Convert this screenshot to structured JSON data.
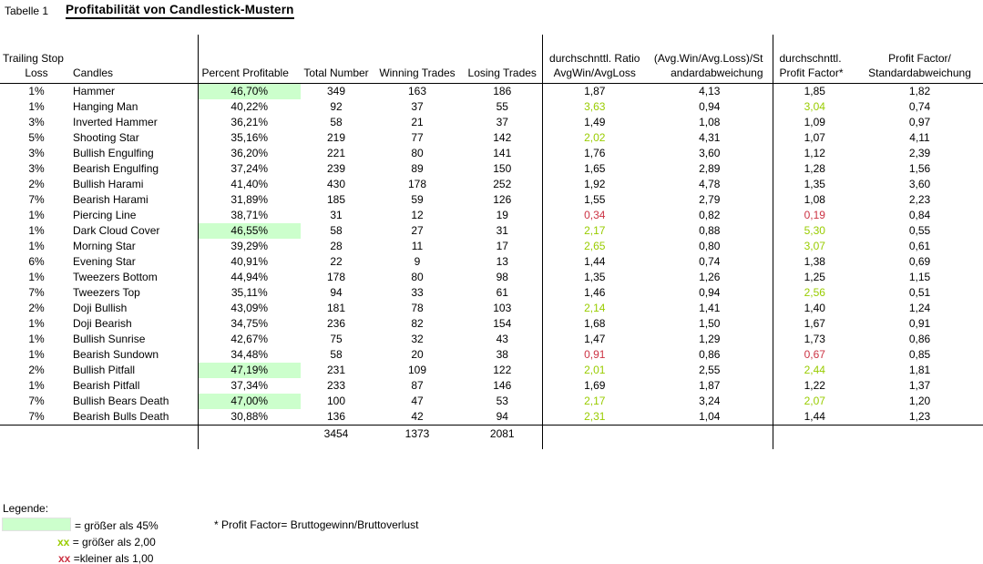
{
  "title": {
    "label": "Tabelle 1",
    "heading": "Profitabilität von Candlestick-Mustern"
  },
  "colors": {
    "highlight": "#ccffcc",
    "good": "#99cc00",
    "bad": "#cc3344"
  },
  "table": {
    "headers": {
      "trailing_stop_line1": "Trailing Stop",
      "trailing_stop_line2": "Loss",
      "candles": "Candles",
      "percent": "Percent Profitable",
      "total": "Total Number",
      "winning": "Winning Trades",
      "losing": "Losing Trades",
      "ratio_line1": "durchschnttl. Ratio",
      "ratio_line2": "AvgWin/AvgLoss",
      "ratio_std_line1": "(Avg.Win/Avg.Loss)/St",
      "ratio_std_line2": "andardabweichung",
      "pf_line1": "durchschnttl.",
      "pf_line2": "Profit Factor*",
      "pf_std_line1": "Profit Factor/",
      "pf_std_line2": "Standardabweichung"
    },
    "rows": [
      {
        "stop": "1%",
        "candle": "Hammer",
        "percent": "46,70%",
        "hl": true,
        "total": "349",
        "winning": "163",
        "losing": "186",
        "ratio": "1,87",
        "rc": "",
        "ratio_std": "4,13",
        "pf": "1,85",
        "pc": "",
        "pf_std": "1,82"
      },
      {
        "stop": "1%",
        "candle": "Hanging Man",
        "percent": "40,22%",
        "hl": false,
        "total": "92",
        "winning": "37",
        "losing": "55",
        "ratio": "3,63",
        "rc": "good",
        "ratio_std": "0,94",
        "pf": "3,04",
        "pc": "good",
        "pf_std": "0,74"
      },
      {
        "stop": "3%",
        "candle": "Inverted Hammer",
        "percent": "36,21%",
        "hl": false,
        "total": "58",
        "winning": "21",
        "losing": "37",
        "ratio": "1,49",
        "rc": "",
        "ratio_std": "1,08",
        "pf": "1,09",
        "pc": "",
        "pf_std": "0,97"
      },
      {
        "stop": "5%",
        "candle": "Shooting Star",
        "percent": "35,16%",
        "hl": false,
        "total": "219",
        "winning": "77",
        "losing": "142",
        "ratio": "2,02",
        "rc": "good",
        "ratio_std": "4,31",
        "pf": "1,07",
        "pc": "",
        "pf_std": "4,11"
      },
      {
        "stop": "3%",
        "candle": "Bullish Engulfing",
        "percent": "36,20%",
        "hl": false,
        "total": "221",
        "winning": "80",
        "losing": "141",
        "ratio": "1,76",
        "rc": "",
        "ratio_std": "3,60",
        "pf": "1,12",
        "pc": "",
        "pf_std": "2,39"
      },
      {
        "stop": "3%",
        "candle": "Bearish Engulfing",
        "percent": "37,24%",
        "hl": false,
        "total": "239",
        "winning": "89",
        "losing": "150",
        "ratio": "1,65",
        "rc": "",
        "ratio_std": "2,89",
        "pf": "1,28",
        "pc": "",
        "pf_std": "1,56"
      },
      {
        "stop": "2%",
        "candle": "Bullish Harami",
        "percent": "41,40%",
        "hl": false,
        "total": "430",
        "winning": "178",
        "losing": "252",
        "ratio": "1,92",
        "rc": "",
        "ratio_std": "4,78",
        "pf": "1,35",
        "pc": "",
        "pf_std": "3,60"
      },
      {
        "stop": "7%",
        "candle": "Bearish Harami",
        "percent": "31,89%",
        "hl": false,
        "total": "185",
        "winning": "59",
        "losing": "126",
        "ratio": "1,55",
        "rc": "",
        "ratio_std": "2,79",
        "pf": "1,08",
        "pc": "",
        "pf_std": "2,23"
      },
      {
        "stop": "1%",
        "candle": "Piercing Line",
        "percent": "38,71%",
        "hl": false,
        "total": "31",
        "winning": "12",
        "losing": "19",
        "ratio": "0,34",
        "rc": "bad",
        "ratio_std": "0,82",
        "pf": "0,19",
        "pc": "bad",
        "pf_std": "0,84"
      },
      {
        "stop": "1%",
        "candle": "Dark Cloud Cover",
        "percent": "46,55%",
        "hl": true,
        "total": "58",
        "winning": "27",
        "losing": "31",
        "ratio": "2,17",
        "rc": "good",
        "ratio_std": "0,88",
        "pf": "5,30",
        "pc": "good",
        "pf_std": "0,55"
      },
      {
        "stop": "1%",
        "candle": "Morning Star",
        "percent": "39,29%",
        "hl": false,
        "total": "28",
        "winning": "11",
        "losing": "17",
        "ratio": "2,65",
        "rc": "good",
        "ratio_std": "0,80",
        "pf": "3,07",
        "pc": "good",
        "pf_std": "0,61"
      },
      {
        "stop": "6%",
        "candle": "Evening Star",
        "percent": "40,91%",
        "hl": false,
        "total": "22",
        "winning": "9",
        "losing": "13",
        "ratio": "1,44",
        "rc": "",
        "ratio_std": "0,74",
        "pf": "1,38",
        "pc": "",
        "pf_std": "0,69"
      },
      {
        "stop": "1%",
        "candle": "Tweezers Bottom",
        "percent": "44,94%",
        "hl": false,
        "total": "178",
        "winning": "80",
        "losing": "98",
        "ratio": "1,35",
        "rc": "",
        "ratio_std": "1,26",
        "pf": "1,25",
        "pc": "",
        "pf_std": "1,15"
      },
      {
        "stop": "7%",
        "candle": "Tweezers Top",
        "percent": "35,11%",
        "hl": false,
        "total": "94",
        "winning": "33",
        "losing": "61",
        "ratio": "1,46",
        "rc": "",
        "ratio_std": "0,94",
        "pf": "2,56",
        "pc": "good",
        "pf_std": "0,51"
      },
      {
        "stop": "2%",
        "candle": "Doji Bullish",
        "percent": "43,09%",
        "hl": false,
        "total": "181",
        "winning": "78",
        "losing": "103",
        "ratio": "2,14",
        "rc": "good",
        "ratio_std": "1,41",
        "pf": "1,40",
        "pc": "",
        "pf_std": "1,24"
      },
      {
        "stop": "1%",
        "candle": "Doji Bearish",
        "percent": "34,75%",
        "hl": false,
        "total": "236",
        "winning": "82",
        "losing": "154",
        "ratio": "1,68",
        "rc": "",
        "ratio_std": "1,50",
        "pf": "1,67",
        "pc": "",
        "pf_std": "0,91"
      },
      {
        "stop": "1%",
        "candle": "Bullish Sunrise",
        "percent": "42,67%",
        "hl": false,
        "total": "75",
        "winning": "32",
        "losing": "43",
        "ratio": "1,47",
        "rc": "",
        "ratio_std": "1,29",
        "pf": "1,73",
        "pc": "",
        "pf_std": "0,86"
      },
      {
        "stop": "1%",
        "candle": "Bearish Sundown",
        "percent": "34,48%",
        "hl": false,
        "total": "58",
        "winning": "20",
        "losing": "38",
        "ratio": "0,91",
        "rc": "bad",
        "ratio_std": "0,86",
        "pf": "0,67",
        "pc": "bad",
        "pf_std": "0,85"
      },
      {
        "stop": "2%",
        "candle": "Bullish Pitfall",
        "percent": "47,19%",
        "hl": true,
        "total": "231",
        "winning": "109",
        "losing": "122",
        "ratio": "2,01",
        "rc": "good",
        "ratio_std": "2,55",
        "pf": "2,44",
        "pc": "good",
        "pf_std": "1,81"
      },
      {
        "stop": "1%",
        "candle": "Bearish Pitfall",
        "percent": "37,34%",
        "hl": false,
        "total": "233",
        "winning": "87",
        "losing": "146",
        "ratio": "1,69",
        "rc": "",
        "ratio_std": "1,87",
        "pf": "1,22",
        "pc": "",
        "pf_std": "1,37"
      },
      {
        "stop": "7%",
        "candle": "Bullish Bears Death",
        "percent": "47,00%",
        "hl": true,
        "total": "100",
        "winning": "47",
        "losing": "53",
        "ratio": "2,17",
        "rc": "good",
        "ratio_std": "3,24",
        "pf": "2,07",
        "pc": "good",
        "pf_std": "1,20"
      },
      {
        "stop": "7%",
        "candle": "Bearish Bulls Death",
        "percent": "30,88%",
        "hl": false,
        "total": "136",
        "winning": "42",
        "losing": "94",
        "ratio": "2,31",
        "rc": "good",
        "ratio_std": "1,04",
        "pf": "1,44",
        "pc": "",
        "pf_std": "1,23"
      }
    ],
    "totals": {
      "total": "3454",
      "winning": "1373",
      "losing": "2081"
    }
  },
  "legend": {
    "title": "Legende:",
    "green_label": "= größer als 45%",
    "good_symbol": "xx",
    "good_label": "= größer als 2,00",
    "bad_symbol": "xx",
    "bad_label": "=kleiner als 1,00",
    "footnote": "* Profit Factor= Bruttogewinn/Bruttoverlust"
  }
}
